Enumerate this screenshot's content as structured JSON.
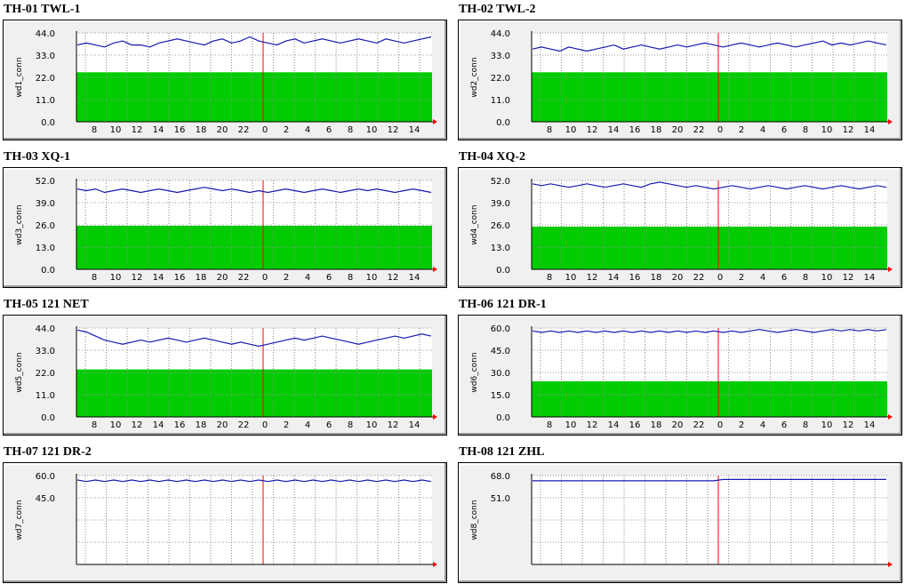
{
  "chart_data": [
    {
      "type": "area",
      "title": "TH-01 TWL-1",
      "ylabel": "wd1_conn",
      "yticks": [
        "0.0",
        "11.0",
        "22.0",
        "33.0",
        "44.0"
      ],
      "ylim": [
        0,
        44
      ],
      "xticks": [
        "8",
        "10",
        "12",
        "14",
        "16",
        "18",
        "20",
        "22",
        "0",
        "2",
        "4",
        "6",
        "8",
        "10",
        "12",
        "14"
      ],
      "series": [
        {
          "level": 24,
          "values": [
            38,
            39,
            38,
            37,
            39,
            40,
            38,
            38,
            37,
            39,
            40,
            41,
            40,
            39,
            38,
            40,
            41,
            39,
            40,
            42,
            40,
            39,
            38,
            40,
            41,
            39,
            40,
            41,
            40,
            39,
            40,
            41,
            40,
            39,
            41,
            40,
            39,
            40,
            41,
            42
          ]
        },
        {
          "level": 24.5
        }
      ],
      "colors": {
        "line": "#1818b0",
        "fill": "#00cc00",
        "now": "#ff0000"
      }
    },
    {
      "type": "area",
      "title": "TH-02 TWL-2",
      "ylabel": "wd2_conn",
      "yticks": [
        "0.0",
        "11.0",
        "22.0",
        "33.0",
        "44.0"
      ],
      "ylim": [
        0,
        44
      ],
      "xticks": [
        "8",
        "10",
        "12",
        "14",
        "16",
        "18",
        "20",
        "22",
        "0",
        "2",
        "4",
        "6",
        "8",
        "10",
        "12",
        "14"
      ],
      "series": [
        {
          "values": [
            36,
            37,
            36,
            35,
            37,
            36,
            35,
            36,
            37,
            38,
            36,
            37,
            38,
            37,
            36,
            37,
            38,
            37,
            38,
            39,
            38,
            37,
            38,
            39,
            38,
            37,
            38,
            39,
            38,
            37,
            38,
            39,
            40,
            38,
            39,
            38,
            39,
            40,
            39,
            38
          ]
        },
        {
          "level": 24.5
        }
      ],
      "colors": {
        "line": "#1818b0",
        "fill": "#00cc00",
        "now": "#ff0000"
      }
    },
    {
      "type": "area",
      "title": "TH-03 XQ-1",
      "ylabel": "wd3_conn",
      "yticks": [
        "0.0",
        "13.0",
        "26.0",
        "39.0",
        "52.0"
      ],
      "ylim": [
        0,
        52
      ],
      "xticks": [
        "8",
        "10",
        "12",
        "14",
        "16",
        "18",
        "20",
        "22",
        "0",
        "2",
        "4",
        "6",
        "8",
        "10",
        "12",
        "14"
      ],
      "series": [
        {
          "values": [
            47,
            46,
            47,
            45,
            46,
            47,
            46,
            45,
            46,
            47,
            46,
            45,
            46,
            47,
            48,
            47,
            46,
            47,
            46,
            45,
            46,
            45,
            46,
            47,
            46,
            45,
            46,
            47,
            46,
            45,
            46,
            47,
            46,
            47,
            46,
            45,
            46,
            47,
            46,
            45
          ]
        },
        {
          "level": 25.5
        }
      ],
      "colors": {
        "line": "#1818b0",
        "fill": "#00cc00",
        "now": "#ff0000"
      }
    },
    {
      "type": "area",
      "title": "TH-04 XQ-2",
      "ylabel": "wd4_conn",
      "yticks": [
        "0.0",
        "13.0",
        "26.0",
        "39.0",
        "52.0"
      ],
      "ylim": [
        0,
        52
      ],
      "xticks": [
        "8",
        "10",
        "12",
        "14",
        "16",
        "18",
        "20",
        "22",
        "0",
        "2",
        "4",
        "6",
        "8",
        "10",
        "12",
        "14"
      ],
      "series": [
        {
          "values": [
            50,
            49,
            50,
            49,
            48,
            49,
            50,
            49,
            48,
            49,
            50,
            49,
            48,
            50,
            51,
            50,
            49,
            48,
            49,
            48,
            47,
            48,
            49,
            48,
            47,
            48,
            49,
            48,
            47,
            48,
            49,
            48,
            47,
            48,
            49,
            48,
            47,
            48,
            49,
            48
          ]
        },
        {
          "level": 25
        }
      ],
      "colors": {
        "line": "#1818b0",
        "fill": "#00cc00",
        "now": "#ff0000"
      }
    },
    {
      "type": "area",
      "title": "TH-05 121 NET",
      "ylabel": "wd5_conn",
      "yticks": [
        "0.0",
        "11.0",
        "22.0",
        "33.0",
        "44.0"
      ],
      "ylim": [
        0,
        44
      ],
      "xticks": [
        "8",
        "10",
        "12",
        "14",
        "16",
        "18",
        "20",
        "22",
        "0",
        "2",
        "4",
        "6",
        "8",
        "10",
        "12",
        "14"
      ],
      "series": [
        {
          "values": [
            43,
            42,
            40,
            38,
            37,
            36,
            37,
            38,
            37,
            38,
            39,
            38,
            37,
            38,
            39,
            38,
            37,
            36,
            37,
            36,
            35,
            36,
            37,
            38,
            39,
            38,
            39,
            40,
            39,
            38,
            37,
            36,
            37,
            38,
            39,
            40,
            39,
            40,
            41,
            40
          ]
        },
        {
          "level": 23.5
        }
      ],
      "colors": {
        "line": "#1818b0",
        "fill": "#00cc00",
        "now": "#ff0000"
      }
    },
    {
      "type": "area",
      "title": "TH-06 121 DR-1",
      "ylabel": "wd6_conn",
      "yticks": [
        "0.0",
        "15.0",
        "30.0",
        "45.0",
        "60.0"
      ],
      "ylim": [
        0,
        60
      ],
      "xticks": [
        "8",
        "10",
        "12",
        "14",
        "16",
        "18",
        "20",
        "22",
        "0",
        "2",
        "4",
        "6",
        "8",
        "10",
        "12",
        "14"
      ],
      "series": [
        {
          "values": [
            58,
            57,
            58,
            57,
            58,
            57,
            58,
            57,
            58,
            57,
            58,
            57,
            58,
            57,
            58,
            57,
            58,
            57,
            58,
            57,
            58,
            57,
            58,
            57,
            58,
            59,
            58,
            57,
            58,
            59,
            58,
            57,
            58,
            59,
            58,
            59,
            58,
            59,
            58,
            59
          ]
        },
        {
          "level": 24
        }
      ],
      "colors": {
        "line": "#1818b0",
        "fill": "#00cc00",
        "now": "#ff0000"
      }
    },
    {
      "type": "area",
      "title": "TH-07 121 DR-2",
      "ylabel": "wd7_conn",
      "yticks": [
        "45.0",
        "60.0"
      ],
      "ylim": [
        0,
        60
      ],
      "xticks": [],
      "series": [
        {
          "values": [
            57,
            56,
            57,
            56,
            57,
            56,
            57,
            56,
            57,
            56,
            57,
            56,
            57,
            56,
            57,
            56,
            57,
            56,
            57,
            56,
            57,
            56,
            57,
            56,
            57,
            56,
            57,
            56,
            57,
            56,
            57,
            56,
            57,
            56,
            57,
            56,
            57,
            56,
            57,
            56
          ]
        }
      ],
      "colors": {
        "line": "#1818b0",
        "fill": "#00cc00",
        "now": "#ff0000"
      }
    },
    {
      "type": "area",
      "title": "TH-08 121 ZHL",
      "ylabel": "wd8_conn",
      "yticks": [
        "51.0",
        "68.0"
      ],
      "ylim": [
        0,
        68
      ],
      "xticks": [],
      "series": [
        {
          "values": [
            64,
            64,
            64,
            64,
            64,
            64,
            64,
            64,
            64,
            64,
            64,
            64,
            64,
            64,
            64,
            64,
            64,
            64,
            64,
            64,
            64,
            65,
            65,
            65,
            65,
            65,
            65,
            65,
            65,
            65,
            65,
            65,
            65,
            65,
            65,
            65,
            65,
            65,
            65,
            65
          ]
        }
      ],
      "colors": {
        "line": "#1818b0",
        "fill": "#00cc00",
        "now": "#ff0000"
      }
    }
  ]
}
